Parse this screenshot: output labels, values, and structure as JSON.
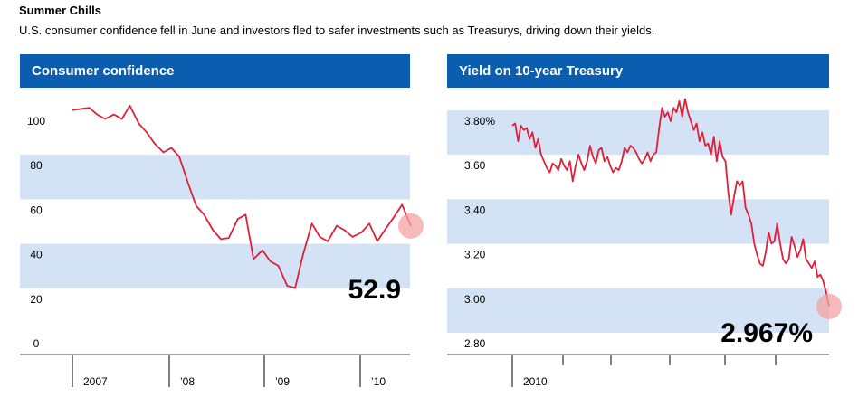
{
  "title": "Summer Chills",
  "subtitle": "U.S. consumer confidence fell in June and investors fled to safer investments such as Treasurys, driving down their yields.",
  "colors": {
    "header": "#0b5db0",
    "band": "#d3e2f4",
    "line": "#e0203a",
    "marker": "#f4a3a3"
  },
  "chart_data": [
    {
      "type": "line",
      "title": "Consumer confidence",
      "ylim": [
        0,
        110
      ],
      "yticks": [
        0,
        20,
        40,
        60,
        80,
        100
      ],
      "ytick_labels": [
        "0",
        "20",
        "40",
        "60",
        "80",
        "100"
      ],
      "xlim": [
        2007.0,
        2010.5
      ],
      "xticks": [
        2007,
        2008,
        2009,
        2010
      ],
      "xtick_labels": [
        "2007",
        "’08",
        "’09",
        "’10"
      ],
      "callout": "52.9",
      "series": [
        {
          "x": [
            2007.0,
            2007.08,
            2007.17,
            2007.25,
            2007.33,
            2007.42,
            2007.5,
            2007.58,
            2007.67,
            2007.75,
            2007.83,
            2007.92,
            2008.0,
            2008.08,
            2008.17,
            2008.25,
            2008.33,
            2008.42,
            2008.5,
            2008.58,
            2008.67,
            2008.75,
            2008.83,
            2008.92,
            2009.0,
            2009.08,
            2009.17,
            2009.25,
            2009.33,
            2009.42,
            2009.5,
            2009.58,
            2009.67,
            2009.75,
            2009.83,
            2009.92,
            2010.0,
            2010.08,
            2010.17,
            2010.25,
            2010.33,
            2010.42
          ],
          "y": [
            105,
            105.5,
            106,
            103,
            101,
            103,
            101,
            107,
            99,
            95,
            90,
            86,
            88,
            84,
            72,
            62,
            58,
            51,
            47,
            47.5,
            56,
            58,
            38,
            42,
            37,
            35,
            26,
            25,
            40,
            54,
            48,
            46,
            53,
            51,
            48,
            50,
            54,
            46,
            52,
            57,
            62.5,
            52.9
          ]
        }
      ]
    },
    {
      "type": "line",
      "title": "Yield on 10-year Treasury",
      "ylim": [
        2.76,
        3.96
      ],
      "yticks": [
        2.8,
        3.0,
        3.2,
        3.4,
        3.6,
        3.8
      ],
      "ytick_labels": [
        "2.80",
        "3.00",
        "3.20",
        "3.40",
        "3.60",
        "3.80%"
      ],
      "xlim": [
        0,
        33
      ],
      "xticks": [
        2,
        7,
        10,
        16,
        21.5,
        26.5
      ],
      "xtick_labels": [
        "2010",
        "",
        "",
        "",
        "",
        ""
      ],
      "callout": "2.967%",
      "series": [
        {
          "x": [
            0,
            0.3,
            0.6,
            0.9,
            1.2,
            1.5,
            1.8,
            2.1,
            2.4,
            2.7,
            3.0,
            3.3,
            3.6,
            3.9,
            4.2,
            4.5,
            4.8,
            5.1,
            5.4,
            5.7,
            6.0,
            6.3,
            6.6,
            6.9,
            7.2,
            7.5,
            7.8,
            8.1,
            8.4,
            8.7,
            9.0,
            9.3,
            9.6,
            9.9,
            10.2,
            10.5,
            10.8,
            11.1,
            11.4,
            11.7,
            12.0,
            12.3,
            12.6,
            12.9,
            13.2,
            13.5,
            13.8,
            14.1,
            14.4,
            14.7,
            15.0,
            15.3,
            15.6,
            15.9,
            16.2,
            16.5,
            16.8,
            17.1,
            17.4,
            17.7,
            18.0,
            18.3,
            18.6,
            18.9,
            19.2,
            19.5,
            19.8,
            20.1,
            20.4,
            20.7,
            21.0,
            21.3,
            21.6,
            21.9,
            22.2,
            22.5,
            22.8,
            23.1,
            23.4,
            23.7,
            24.0,
            24.3,
            24.6,
            24.9,
            25.2,
            25.5,
            25.8,
            26.1,
            26.4,
            26.7,
            27.0,
            27.3,
            27.6,
            27.9,
            28.2,
            28.5,
            28.8,
            29.1,
            29.4,
            29.7,
            30.0,
            30.3,
            30.6,
            30.9,
            31.2,
            31.5,
            31.8,
            32.1,
            32.4,
            32.7,
            33.0
          ],
          "y": [
            3.78,
            3.79,
            3.71,
            3.78,
            3.76,
            3.77,
            3.72,
            3.75,
            3.68,
            3.72,
            3.65,
            3.62,
            3.59,
            3.57,
            3.61,
            3.6,
            3.58,
            3.63,
            3.6,
            3.58,
            3.62,
            3.53,
            3.6,
            3.65,
            3.61,
            3.58,
            3.62,
            3.69,
            3.64,
            3.61,
            3.67,
            3.68,
            3.62,
            3.64,
            3.6,
            3.57,
            3.59,
            3.58,
            3.62,
            3.68,
            3.66,
            3.69,
            3.68,
            3.66,
            3.63,
            3.61,
            3.63,
            3.66,
            3.62,
            3.65,
            3.66,
            3.77,
            3.86,
            3.82,
            3.84,
            3.8,
            3.86,
            3.84,
            3.89,
            3.82,
            3.9,
            3.84,
            3.8,
            3.76,
            3.79,
            3.71,
            3.75,
            3.69,
            3.7,
            3.65,
            3.73,
            3.62,
            3.71,
            3.64,
            3.62,
            3.48,
            3.38,
            3.46,
            3.53,
            3.51,
            3.53,
            3.41,
            3.38,
            3.34,
            3.25,
            3.2,
            3.16,
            3.15,
            3.21,
            3.3,
            3.25,
            3.26,
            3.34,
            3.25,
            3.18,
            3.16,
            3.18,
            3.28,
            3.24,
            3.19,
            3.22,
            3.27,
            3.18,
            3.16,
            3.14,
            3.17,
            3.1,
            3.11,
            3.08,
            3.03,
            2.967
          ]
        }
      ]
    }
  ]
}
